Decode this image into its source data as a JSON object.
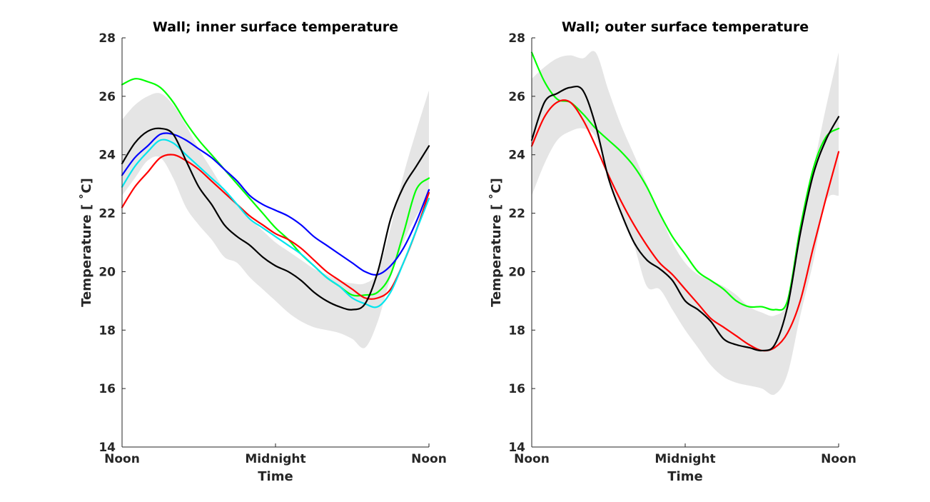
{
  "chart_data": [
    {
      "type": "line",
      "title": "Wall; inner surface temperature",
      "xlabel": "Time",
      "ylabel": "Temperature [ ˚C]",
      "ylim": [
        14,
        28
      ],
      "yticks": [
        "14",
        "16",
        "18",
        "20",
        "22",
        "24",
        "26",
        "28"
      ],
      "xlim": [
        0,
        24
      ],
      "xticks": [
        {
          "x": 0,
          "label": "Noon"
        },
        {
          "x": 12,
          "label": "Midnight"
        },
        {
          "x": 24,
          "label": "Noon"
        }
      ],
      "grid": false,
      "band": {
        "x": [
          0,
          1,
          2,
          3,
          4,
          5,
          6,
          7,
          8,
          9,
          10,
          11,
          12,
          13,
          14,
          15,
          16,
          17,
          18,
          19,
          20,
          21,
          22,
          23,
          24
        ],
        "upper": [
          25.2,
          25.7,
          26.0,
          26.1,
          25.7,
          25.0,
          24.2,
          23.5,
          22.8,
          22.3,
          21.8,
          21.4,
          21.0,
          20.7,
          20.4,
          20.1,
          19.9,
          19.7,
          19.6,
          19.6,
          20.0,
          21.5,
          23.3,
          24.8,
          26.2
        ],
        "lower": [
          22.6,
          23.2,
          23.8,
          23.9,
          23.2,
          22.2,
          21.6,
          21.1,
          20.5,
          20.3,
          19.8,
          19.4,
          19.0,
          18.6,
          18.3,
          18.1,
          18.0,
          17.9,
          17.7,
          17.4,
          18.3,
          19.8,
          21.0,
          21.9,
          22.6
        ]
      },
      "series": [
        {
          "color": "#00ff00",
          "x": [
            0,
            1,
            2,
            3,
            4,
            5,
            6,
            7,
            8,
            9,
            10,
            11,
            12,
            13,
            14,
            15,
            16,
            17,
            18,
            19,
            20,
            21,
            22,
            23,
            24
          ],
          "y": [
            26.4,
            26.6,
            26.5,
            26.3,
            25.8,
            25.1,
            24.5,
            24.0,
            23.5,
            23.0,
            22.5,
            22.0,
            21.5,
            21.1,
            20.6,
            20.2,
            19.8,
            19.5,
            19.2,
            19.2,
            19.3,
            19.9,
            21.3,
            22.8,
            23.2
          ]
        },
        {
          "color": "#0000ff",
          "x": [
            0,
            1,
            2,
            3,
            4,
            5,
            6,
            7,
            8,
            9,
            10,
            11,
            12,
            13,
            14,
            15,
            16,
            17,
            18,
            19,
            20,
            21,
            22,
            23,
            24
          ],
          "y": [
            23.3,
            23.9,
            24.3,
            24.7,
            24.7,
            24.5,
            24.2,
            23.9,
            23.5,
            23.1,
            22.6,
            22.3,
            22.1,
            21.9,
            21.6,
            21.2,
            20.9,
            20.6,
            20.3,
            20.0,
            19.9,
            20.2,
            20.8,
            21.7,
            22.8
          ]
        },
        {
          "color": "#ff0000",
          "x": [
            0,
            1,
            2,
            3,
            4,
            5,
            6,
            7,
            8,
            9,
            10,
            11,
            12,
            13,
            14,
            15,
            16,
            17,
            18,
            19,
            20,
            21,
            22,
            23,
            24
          ],
          "y": [
            22.2,
            22.9,
            23.4,
            23.9,
            24.0,
            23.8,
            23.5,
            23.1,
            22.7,
            22.3,
            21.9,
            21.6,
            21.3,
            21.1,
            20.8,
            20.4,
            20.0,
            19.7,
            19.4,
            19.1,
            19.1,
            19.4,
            20.3,
            21.4,
            22.7
          ]
        },
        {
          "color": "#00e5ee",
          "x": [
            0,
            1,
            2,
            3,
            4,
            5,
            6,
            7,
            8,
            9,
            10,
            11,
            12,
            13,
            14,
            15,
            16,
            17,
            18,
            19,
            20,
            21,
            22,
            23,
            24
          ],
          "y": [
            22.9,
            23.6,
            24.1,
            24.5,
            24.4,
            24.0,
            23.6,
            23.2,
            22.8,
            22.3,
            21.8,
            21.5,
            21.2,
            20.9,
            20.6,
            20.2,
            19.8,
            19.5,
            19.1,
            18.9,
            18.8,
            19.3,
            20.3,
            21.4,
            22.5
          ]
        },
        {
          "color": "#000000",
          "x": [
            0,
            1,
            2,
            3,
            4,
            5,
            6,
            7,
            8,
            9,
            10,
            11,
            12,
            13,
            14,
            15,
            16,
            17,
            18,
            19,
            20,
            21,
            22,
            23,
            24
          ],
          "y": [
            23.7,
            24.4,
            24.8,
            24.9,
            24.7,
            23.8,
            22.9,
            22.3,
            21.6,
            21.2,
            20.9,
            20.5,
            20.2,
            20.0,
            19.7,
            19.3,
            19.0,
            18.8,
            18.7,
            18.9,
            20.0,
            21.8,
            22.9,
            23.6,
            24.3
          ]
        }
      ]
    },
    {
      "type": "line",
      "title": "Wall; outer surface temperature",
      "xlabel": "Time",
      "ylabel": "Temperature [ ˚C]",
      "ylim": [
        14,
        28
      ],
      "yticks": [
        "14",
        "16",
        "18",
        "20",
        "22",
        "24",
        "26",
        "28"
      ],
      "xlim": [
        0,
        24
      ],
      "xticks": [
        {
          "x": 0,
          "label": "Noon"
        },
        {
          "x": 12,
          "label": "Midnight"
        },
        {
          "x": 24,
          "label": "Noon"
        }
      ],
      "grid": false,
      "band": {
        "x": [
          0,
          1,
          2,
          3,
          4,
          5,
          6,
          7,
          8,
          9,
          10,
          11,
          12,
          13,
          14,
          15,
          16,
          17,
          18,
          19,
          20,
          21,
          22,
          23,
          24
        ],
        "upper": [
          26.6,
          27.0,
          27.3,
          27.4,
          27.3,
          27.5,
          26.2,
          25.0,
          24.0,
          23.0,
          22.0,
          21.0,
          20.3,
          19.9,
          19.7,
          19.5,
          19.2,
          18.8,
          18.6,
          18.5,
          19.0,
          21.5,
          23.5,
          25.6,
          27.5
        ],
        "lower": [
          22.6,
          23.7,
          24.5,
          24.8,
          24.9,
          24.6,
          23.2,
          22.0,
          20.9,
          19.5,
          19.4,
          18.7,
          18.0,
          17.4,
          16.8,
          16.4,
          16.2,
          16.1,
          16.0,
          15.8,
          16.5,
          18.5,
          20.3,
          22.4,
          22.6
        ]
      },
      "series": [
        {
          "color": "#00ff00",
          "x": [
            0,
            1,
            2,
            3,
            4,
            5,
            6,
            7,
            8,
            9,
            10,
            11,
            12,
            13,
            14,
            15,
            16,
            17,
            18,
            19,
            20,
            21,
            22,
            23,
            24
          ],
          "y": [
            27.5,
            26.5,
            25.9,
            25.8,
            25.4,
            24.9,
            24.5,
            24.1,
            23.6,
            22.9,
            22.0,
            21.2,
            20.6,
            20.0,
            19.7,
            19.4,
            19.0,
            18.8,
            18.8,
            18.7,
            19.0,
            21.5,
            23.5,
            24.6,
            24.9
          ]
        },
        {
          "color": "#ff0000",
          "x": [
            0,
            1,
            2,
            3,
            4,
            5,
            6,
            7,
            8,
            9,
            10,
            11,
            12,
            13,
            14,
            15,
            16,
            17,
            18,
            19,
            20,
            21,
            22,
            23,
            24
          ],
          "y": [
            24.3,
            25.3,
            25.8,
            25.8,
            25.2,
            24.3,
            23.3,
            22.4,
            21.6,
            20.9,
            20.3,
            19.9,
            19.4,
            18.9,
            18.4,
            18.1,
            17.8,
            17.5,
            17.3,
            17.4,
            17.9,
            19.0,
            20.8,
            22.5,
            24.1
          ]
        },
        {
          "color": "#000000",
          "x": [
            0,
            1,
            2,
            3,
            4,
            5,
            6,
            7,
            8,
            9,
            10,
            11,
            12,
            13,
            14,
            15,
            16,
            17,
            18,
            19,
            20,
            21,
            22,
            23,
            24
          ],
          "y": [
            24.5,
            25.8,
            26.1,
            26.3,
            26.2,
            25.0,
            23.2,
            22.0,
            21.0,
            20.4,
            20.1,
            19.7,
            19.0,
            18.7,
            18.3,
            17.7,
            17.5,
            17.4,
            17.3,
            17.5,
            18.8,
            21.3,
            23.3,
            24.5,
            25.3
          ]
        }
      ]
    }
  ]
}
